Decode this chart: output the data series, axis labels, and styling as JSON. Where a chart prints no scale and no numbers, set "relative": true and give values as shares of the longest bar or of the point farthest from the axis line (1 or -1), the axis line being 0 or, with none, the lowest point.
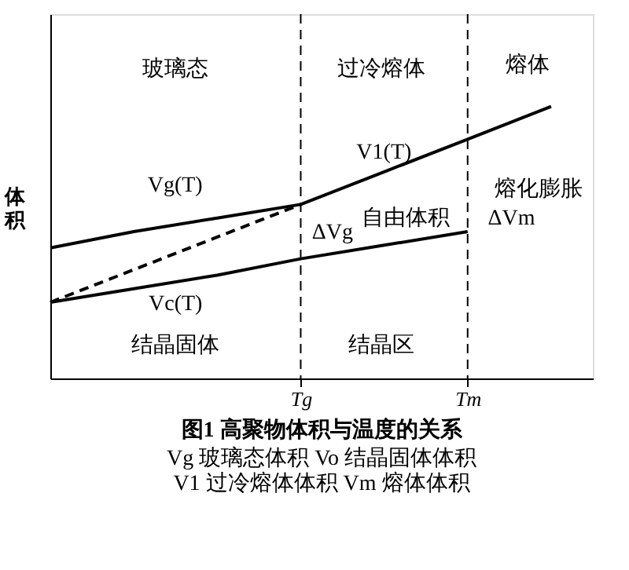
{
  "chart_data": {
    "type": "line",
    "relative": true,
    "title": "图1 高聚物体积与温度的关系",
    "ylabel": "体积",
    "tick_labels": "x",
    "grid": false,
    "marker": "none",
    "categories": [
      null,
      null,
      null,
      "Tg",
      null,
      "Tm",
      null
    ],
    "series": [
      {
        "color": "#000000",
        "line_style": "solid",
        "values": [
          0.48,
          0.54,
          0.59,
          0.64,
          0.76,
          0.88,
          1.0
        ]
      },
      {
        "name": "Vc(T)",
        "color": "#000000",
        "line_style": "solid",
        "values": [
          0.28,
          0.33,
          0.38,
          0.44,
          0.49,
          0.54,
          null
        ]
      },
      {
        "color": "#000000",
        "line_style": "dashed",
        "values": [
          0.28,
          0.4,
          0.52,
          0.64,
          null,
          null,
          null
        ]
      }
    ],
    "ref_lines": [
      {
        "axis": "x",
        "value": "Tg",
        "line_style": "dashed",
        "color": "#000000"
      },
      {
        "axis": "x",
        "value": "Tm",
        "line_style": "dashed",
        "color": "#000000"
      }
    ],
    "annotations": [
      "玻璃态",
      "过冷熔体",
      "熔体",
      "结晶固体",
      "结晶区",
      "ΔVg",
      "自由体积",
      "熔化膨胀",
      "ΔVm",
      "Vg(T)",
      "V1(T)",
      "Vg 玻璃态体积  Vo 结晶固体体积",
      "V1 过冷熔体体积  Vm 熔体体积"
    ]
  }
}
